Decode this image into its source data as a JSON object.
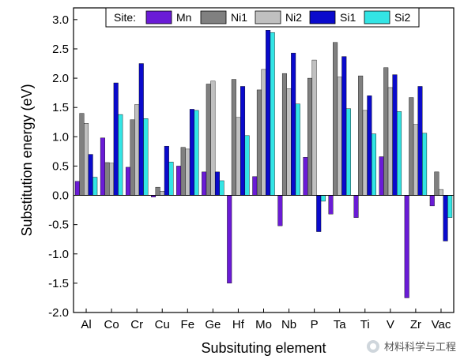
{
  "chart_data": {
    "type": "bar",
    "xlabel": "Subsituting element",
    "ylabel": "Substitution energy (eV)",
    "ylim": [
      -2.0,
      3.2
    ],
    "yticks": [
      -2.0,
      -1.5,
      -1.0,
      -0.5,
      0.0,
      0.5,
      1.0,
      1.5,
      2.0,
      2.5,
      3.0
    ],
    "legend_title": "Site:",
    "legend_position": "top",
    "categories": [
      "Al",
      "Co",
      "Cr",
      "Cu",
      "Fe",
      "Ge",
      "Hf",
      "Mo",
      "Nb",
      "P",
      "Ta",
      "Ti",
      "V",
      "Zr",
      "Vac"
    ],
    "series": [
      {
        "name": "Mn",
        "color": "#6a1bd6",
        "values": [
          0.24,
          0.98,
          0.48,
          -0.03,
          0.5,
          0.4,
          -1.5,
          0.32,
          -0.52,
          0.65,
          -0.32,
          -0.38,
          0.66,
          -1.75,
          -0.18
        ]
      },
      {
        "name": "Ni1",
        "color": "#808080",
        "values": [
          1.4,
          0.56,
          1.29,
          0.14,
          0.82,
          1.9,
          1.98,
          1.8,
          2.08,
          2.0,
          2.61,
          2.04,
          2.18,
          1.67,
          0.4
        ]
      },
      {
        "name": "Ni2",
        "color": "#c0c0c0",
        "values": [
          1.23,
          0.55,
          1.55,
          0.07,
          0.79,
          1.95,
          1.33,
          2.15,
          1.82,
          2.31,
          2.02,
          1.45,
          1.84,
          1.21,
          0.1
        ]
      },
      {
        "name": "Si1",
        "color": "#0a0acc",
        "values": [
          0.7,
          1.92,
          2.25,
          0.84,
          1.47,
          0.4,
          1.86,
          2.82,
          2.43,
          -0.62,
          2.37,
          1.7,
          2.06,
          1.86,
          -0.78
        ]
      },
      {
        "name": "Si2",
        "color": "#33e5e5",
        "values": [
          0.31,
          1.38,
          1.31,
          0.57,
          1.45,
          0.25,
          1.02,
          2.78,
          1.56,
          -0.1,
          1.48,
          1.05,
          1.43,
          1.06,
          -0.38
        ]
      }
    ]
  },
  "watermark": {
    "text": "材料科学与工程",
    "icon": "wechat-icon"
  }
}
